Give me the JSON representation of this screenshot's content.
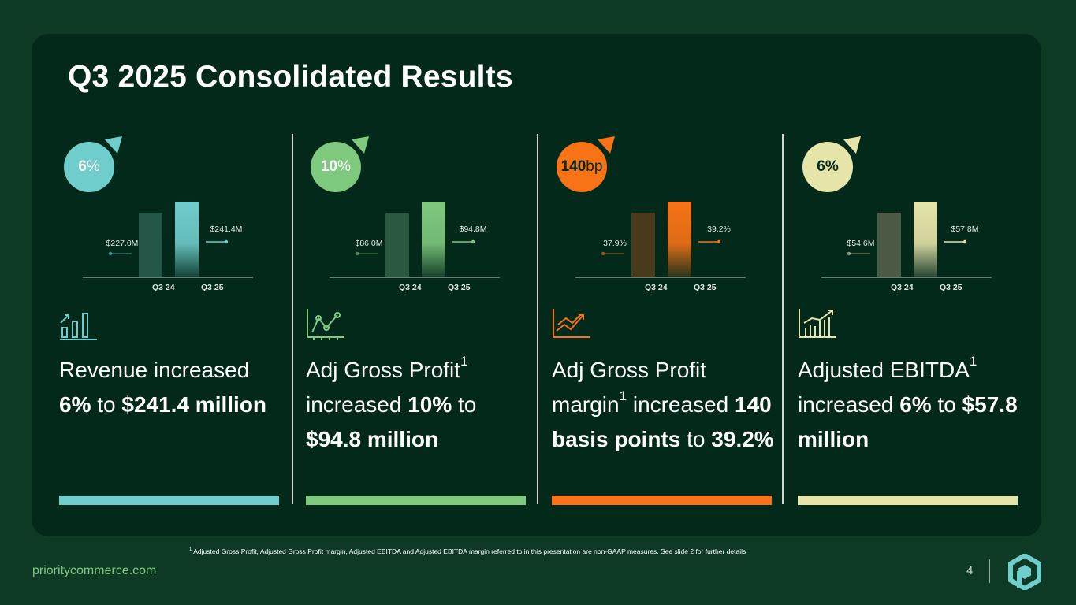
{
  "slide": {
    "title": "Q3 2025 Consolidated Results",
    "footnote_marker": "1",
    "footnote": "Adjusted Gross Profit, Adjusted Gross Profit margin, Adjusted EBITDA and Adjusted EBITDA margin referred to in this presentation are non-GAAP measures. See slide 2 for further details",
    "website": "prioritycommerce.com",
    "page_number": "4"
  },
  "panels": [
    {
      "badge_value": "6",
      "badge_unit": "%",
      "color": "#6fcdcc",
      "desc_parts": [
        {
          "t": "Revenue increased ",
          "b": false
        },
        {
          "t": "6%",
          "b": true
        },
        {
          "t": " to ",
          "b": false
        },
        {
          "t": "$241.4 million",
          "b": true
        }
      ]
    },
    {
      "badge_value": "10",
      "badge_unit": "%",
      "color": "#7fc97f",
      "desc_parts": [
        {
          "t": "Adj Gross Profit",
          "b": false
        },
        {
          "t": "1",
          "sup": true
        },
        {
          "t": " increased ",
          "b": false
        },
        {
          "t": "10%",
          "b": true
        },
        {
          "t": " to ",
          "b": false
        },
        {
          "t": "$94.8 million",
          "b": true
        }
      ]
    },
    {
      "badge_value": "140",
      "badge_unit": "bp",
      "color": "#f77316",
      "desc_parts": [
        {
          "t": "Adj Gross Profit margin",
          "b": false
        },
        {
          "t": "1",
          "sup": true
        },
        {
          "t": " increased ",
          "b": false
        },
        {
          "t": "140 basis points",
          "b": true
        },
        {
          "t": " to ",
          "b": false
        },
        {
          "t": "39.2%",
          "b": true
        }
      ]
    },
    {
      "badge_value": "6%",
      "badge_unit": "",
      "color": "#e6e5a9",
      "desc_parts": [
        {
          "t": "Adjusted EBITDA",
          "b": false
        },
        {
          "t": "1",
          "sup": true
        },
        {
          "t": " increased ",
          "b": false
        },
        {
          "t": "6%",
          "b": true
        },
        {
          "t": " to ",
          "b": false
        },
        {
          "t": "$57.8 million",
          "b": true
        }
      ]
    }
  ],
  "chart_data": [
    {
      "type": "bar",
      "categories": [
        "Q3 24",
        "Q3 25"
      ],
      "values": [
        227.0,
        241.4
      ],
      "value_labels": [
        "$227.0M",
        "$241.4M"
      ],
      "color": "#6fcdcc",
      "prior_color": "#24574a"
    },
    {
      "type": "bar",
      "categories": [
        "Q3 24",
        "Q3 25"
      ],
      "values": [
        86.0,
        94.8
      ],
      "value_labels": [
        "$86.0M",
        "$94.8M"
      ],
      "color": "#7fc97f",
      "prior_color": "#2a573f"
    },
    {
      "type": "bar",
      "categories": [
        "Q3 24",
        "Q3 25"
      ],
      "values": [
        37.9,
        39.2
      ],
      "value_labels": [
        "37.9%",
        "39.2%"
      ],
      "color": "#f77316",
      "prior_color": "#4a3a1c"
    },
    {
      "type": "bar",
      "categories": [
        "Q3 24",
        "Q3 25"
      ],
      "values": [
        54.6,
        57.8
      ],
      "value_labels": [
        "$54.6M",
        "$57.8M"
      ],
      "color": "#e6e5a9",
      "prior_color": "#4a5a45"
    }
  ]
}
